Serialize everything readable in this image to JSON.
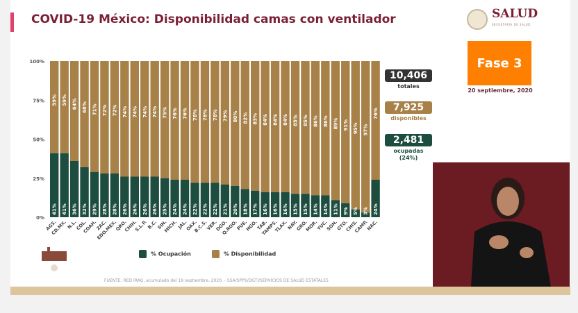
{
  "header": {
    "title": "COVID-19 México: Disponibilidad camas con ventilador",
    "logo_text": "SALUD",
    "logo_subtext": "SECRETARÍA DE SALUD"
  },
  "phase": {
    "label": "Fase 3",
    "date": "20 septiembre, 2020",
    "color": "#ff7f00"
  },
  "stats": [
    {
      "value": "10,406",
      "label": "totales",
      "color": "#333333"
    },
    {
      "value": "7,925",
      "label": "disponibles",
      "color": "#a88148"
    },
    {
      "value": "2,481",
      "label": "ocupadas",
      "sub": "(24%)",
      "color": "#1d4d3f"
    }
  ],
  "chart_data": {
    "type": "bar",
    "stacked": true,
    "ylim": [
      0,
      100
    ],
    "yticks": [
      "0%",
      "25%",
      "50%",
      "75%",
      "100%"
    ],
    "categories": [
      "AGS.",
      "CD.MX.",
      "N.L.",
      "COL.",
      "COAH.",
      "ZAC.",
      "EDO.MEX.",
      "QRO.",
      "CHIH.",
      "S.L.P.",
      "B.C.",
      "SIN.",
      "MICH.",
      "JAL.",
      "OAX.",
      "B.C.S.",
      "VER.",
      "DGO.",
      "Q.ROO.",
      "PUE.",
      "HGO.",
      "TAB.",
      "TAMPS.",
      "TLAX.",
      "NAY.",
      "GRO.",
      "MOR.",
      "YUC.",
      "SON.",
      "GTO.",
      "CHIS.",
      "CAMP.",
      "NAC."
    ],
    "series": [
      {
        "name": "% Ocupación",
        "color": "#1d4d3f",
        "values": [
          41,
          41,
          36,
          32,
          29,
          28,
          28,
          26,
          26,
          26,
          26,
          25,
          24,
          24,
          22,
          22,
          22,
          21,
          20,
          18,
          17,
          16,
          16,
          16,
          15,
          15,
          14,
          14,
          11,
          9,
          5,
          3,
          24
        ]
      },
      {
        "name": "% Disponibilidad",
        "color": "#a88148",
        "values": [
          59,
          59,
          64,
          68,
          71,
          72,
          72,
          74,
          74,
          74,
          74,
          75,
          76,
          76,
          78,
          78,
          78,
          79,
          80,
          82,
          83,
          84,
          84,
          84,
          85,
          85,
          86,
          86,
          89,
          91,
          95,
          97,
          76
        ]
      }
    ],
    "legend": "bottom"
  },
  "source": "FUENTE: RED IRAG, acumulado del 19 septiembre, 2020. -  SSA/SPPS/DGTI/SERVICIOS DE SALUD ESTATALES"
}
